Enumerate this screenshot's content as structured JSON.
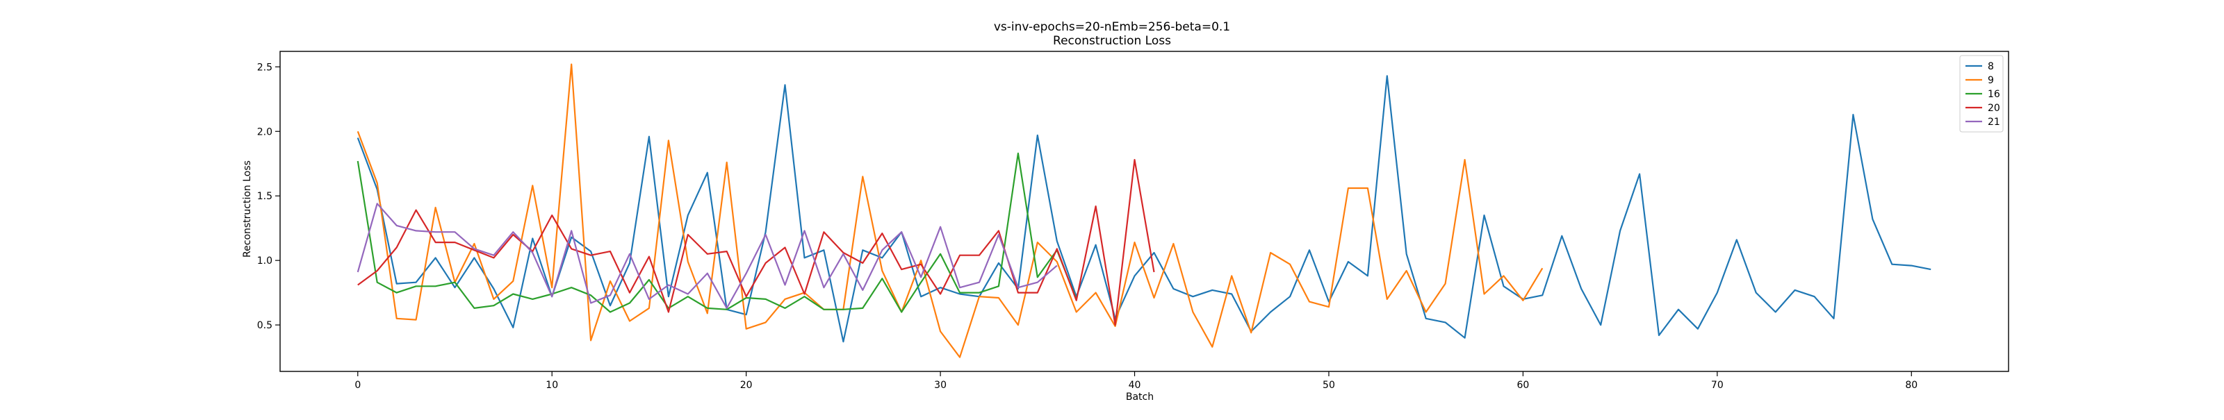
{
  "chart_data": {
    "type": "line",
    "title": "vs-inv-epochs=20-nEmb=256-beta=0.1",
    "subtitle": "Reconstruction Loss",
    "xlabel": "Batch",
    "ylabel": "Reconstruction Loss",
    "xlim": [
      -4,
      85
    ],
    "ylim": [
      0.14,
      2.62
    ],
    "xticks": [
      0,
      10,
      20,
      30,
      40,
      50,
      60,
      70,
      80
    ],
    "yticks": [
      0.5,
      1.0,
      1.5,
      2.0,
      2.5
    ],
    "ytick_labels": [
      "0.5",
      "1.0",
      "1.5",
      "2.0",
      "2.5"
    ],
    "grid": false,
    "legend_position": "top-right",
    "series": [
      {
        "name": "8",
        "color": "#1f77b4",
        "values": [
          1.95,
          1.55,
          0.82,
          0.83,
          1.02,
          0.79,
          1.02,
          0.78,
          0.48,
          1.17,
          0.72,
          1.18,
          1.07,
          0.65,
          0.98,
          1.96,
          0.72,
          1.35,
          1.68,
          0.62,
          0.58,
          1.22,
          2.36,
          1.02,
          1.08,
          0.37,
          1.08,
          1.02,
          1.22,
          0.72,
          0.79,
          0.74,
          0.72,
          0.98,
          0.78,
          1.97,
          1.15,
          0.72,
          1.12,
          0.55,
          0.88,
          1.06,
          0.78,
          0.72,
          0.77,
          0.74,
          0.45,
          0.6,
          0.72,
          1.08,
          0.68,
          0.99,
          0.88,
          2.43,
          1.05,
          0.55,
          0.52,
          0.4,
          1.35,
          0.8,
          0.7,
          0.73,
          1.19,
          0.78,
          0.5,
          1.23,
          1.67,
          0.42,
          0.62,
          0.47,
          0.75,
          1.16,
          0.75,
          0.6,
          0.77,
          0.72,
          0.55,
          2.13,
          1.32,
          0.97,
          0.96,
          0.93
        ]
      },
      {
        "name": "9",
        "color": "#ff7f0e",
        "values": [
          2.0,
          1.6,
          0.55,
          0.54,
          1.41,
          0.83,
          1.13,
          0.7,
          0.84,
          1.58,
          0.79,
          2.52,
          0.38,
          0.84,
          0.53,
          0.63,
          1.93,
          0.99,
          0.59,
          1.76,
          0.47,
          0.52,
          0.7,
          0.75,
          0.62,
          0.62,
          1.65,
          0.92,
          0.6,
          1.0,
          0.45,
          0.25,
          0.72,
          0.71,
          0.5,
          1.14,
          0.99,
          0.6,
          0.75,
          0.49,
          1.14,
          0.71,
          1.13,
          0.6,
          0.33,
          0.88,
          0.44,
          1.06,
          0.97,
          0.68,
          0.64,
          1.56,
          1.56,
          0.7,
          0.92,
          0.6,
          0.82,
          1.78,
          0.74,
          0.88,
          0.69,
          0.94
        ]
      },
      {
        "name": "16",
        "color": "#2ca02c",
        "values": [
          1.77,
          0.83,
          0.75,
          0.8,
          0.8,
          0.83,
          0.63,
          0.65,
          0.74,
          0.7,
          0.74,
          0.79,
          0.73,
          0.6,
          0.67,
          0.85,
          0.63,
          0.72,
          0.63,
          0.62,
          0.71,
          0.7,
          0.63,
          0.72,
          0.62,
          0.62,
          0.63,
          0.86,
          0.6,
          0.83,
          1.05,
          0.75,
          0.75,
          0.8,
          1.83,
          0.87,
          1.08,
          0.7
        ]
      },
      {
        "name": "20",
        "color": "#d62728",
        "values": [
          0.81,
          0.92,
          1.1,
          1.39,
          1.14,
          1.14,
          1.08,
          1.02,
          1.2,
          1.07,
          1.35,
          1.09,
          1.04,
          1.07,
          0.75,
          1.03,
          0.6,
          1.2,
          1.05,
          1.07,
          0.72,
          0.98,
          1.1,
          0.74,
          1.22,
          1.06,
          0.98,
          1.21,
          0.93,
          0.97,
          0.74,
          1.04,
          1.04,
          1.23,
          0.75,
          0.75,
          1.09,
          0.69,
          1.42,
          0.5,
          1.78,
          0.91
        ]
      },
      {
        "name": "21",
        "color": "#9467bd",
        "values": [
          0.91,
          1.44,
          1.27,
          1.23,
          1.22,
          1.22,
          1.09,
          1.04,
          1.22,
          1.06,
          0.72,
          1.23,
          0.67,
          0.73,
          1.05,
          0.7,
          0.81,
          0.74,
          0.9,
          0.63,
          0.9,
          1.2,
          0.81,
          1.23,
          0.79,
          1.05,
          0.77,
          1.08,
          1.22,
          0.87,
          1.26,
          0.79,
          0.83,
          1.2,
          0.79,
          0.83,
          0.96
        ]
      }
    ]
  }
}
